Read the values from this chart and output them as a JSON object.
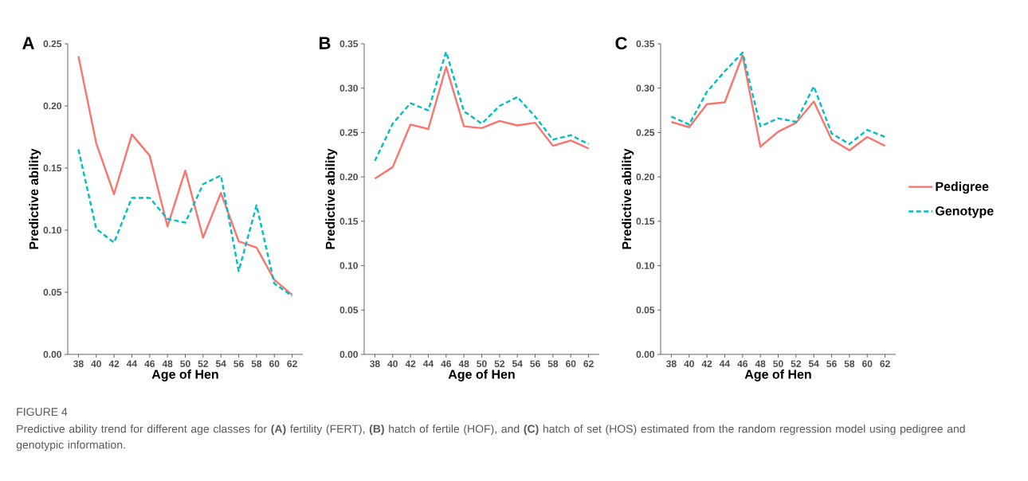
{
  "chart_data": [
    {
      "type": "line",
      "title": "A",
      "xlabel": "Age of Hen",
      "ylabel": "Predictive ability",
      "categories": [
        "38",
        "40",
        "42",
        "44",
        "46",
        "48",
        "50",
        "52",
        "54",
        "56",
        "58",
        "60",
        "62"
      ],
      "series": [
        {
          "color": "#f8766d",
          "line_style": "solid",
          "values": [
            0.24,
            0.17,
            0.129,
            0.177,
            0.16,
            0.103,
            0.148,
            0.094,
            0.13,
            0.091,
            0.086,
            0.06,
            0.048
          ]
        },
        {
          "color": "#00bfc4",
          "line_style": "dashed",
          "values": [
            0.165,
            0.101,
            0.09,
            0.126,
            0.126,
            0.109,
            0.106,
            0.137,
            0.144,
            0.067,
            0.12,
            0.057,
            0.047
          ]
        }
      ],
      "ylim": [
        0,
        0.25
      ],
      "yticks": [
        {
          "value": 0,
          "label": "0.00"
        },
        0.05,
        {
          "value": 0.1,
          "label": "0.10"
        },
        0.15,
        {
          "value": 0.2,
          "label": "0.20"
        },
        0.25
      ],
      "annotations": [
        "FIGURE 4",
        "Predictive ability trend for different age classes for **(A)** fertility (FERT), **(B)** hatch of fertile (HOF), and **(C)** hatch of set (HOS) estimated from the random regression model using pedigree and genotypic information."
      ]
    },
    {
      "type": "line",
      "title": "B",
      "xlabel": "Age of Hen",
      "ylabel": "Predictive ability",
      "categories": [
        "38",
        "40",
        "42",
        "44",
        "46",
        "48",
        "50",
        "52",
        "54",
        "56",
        "58",
        "60",
        "62"
      ],
      "series": [
        {
          "color": "#f8766d",
          "line_style": "solid",
          "values": [
            0.198,
            0.211,
            0.259,
            0.254,
            0.324,
            0.257,
            0.255,
            0.263,
            0.258,
            0.261,
            0.235,
            0.241,
            0.232
          ]
        },
        {
          "color": "#00bfc4",
          "line_style": "dashed",
          "values": [
            0.218,
            0.26,
            0.283,
            0.275,
            0.341,
            0.274,
            0.26,
            0.28,
            0.29,
            0.268,
            0.242,
            0.247,
            0.237
          ]
        }
      ],
      "ylim": [
        0,
        0.35
      ],
      "yticks": [
        {
          "value": 0,
          "label": "0.00"
        },
        0.05,
        {
          "value": 0.1,
          "label": "0.10"
        },
        0.15,
        {
          "value": 0.2,
          "label": "0.20"
        },
        0.25,
        {
          "value": 0.3,
          "label": "0.30"
        },
        0.35
      ]
    },
    {
      "type": "line",
      "title": "C",
      "xlabel": "Age of Hen",
      "ylabel": "Predictive ability",
      "categories": [
        "38",
        "40",
        "42",
        "44",
        "46",
        "48",
        "50",
        "52",
        "54",
        "56",
        "58",
        "60",
        "62"
      ],
      "series": [
        {
          "name": "Pedigree",
          "color": "#f8766d",
          "line_style": "solid",
          "values": [
            0.262,
            0.256,
            0.282,
            0.284,
            0.337,
            0.234,
            0.251,
            0.261,
            0.285,
            0.242,
            0.23,
            0.245,
            0.235
          ]
        },
        {
          "name": "Genotype",
          "color": "#00bfc4",
          "line_style": "dashed",
          "values": [
            0.268,
            0.259,
            0.296,
            0.319,
            0.34,
            0.257,
            0.266,
            0.262,
            0.302,
            0.249,
            0.237,
            0.253,
            0.245
          ]
        }
      ],
      "ylim": [
        0,
        0.35
      ],
      "yticks": [
        {
          "value": 0,
          "label": "0.00"
        },
        0.05,
        {
          "value": 0.1,
          "label": "0.10"
        },
        0.15,
        {
          "value": 0.2,
          "label": "0.20"
        },
        0.25,
        {
          "value": 0.3,
          "label": "0.30"
        },
        0.35
      ],
      "legend": "right"
    }
  ]
}
